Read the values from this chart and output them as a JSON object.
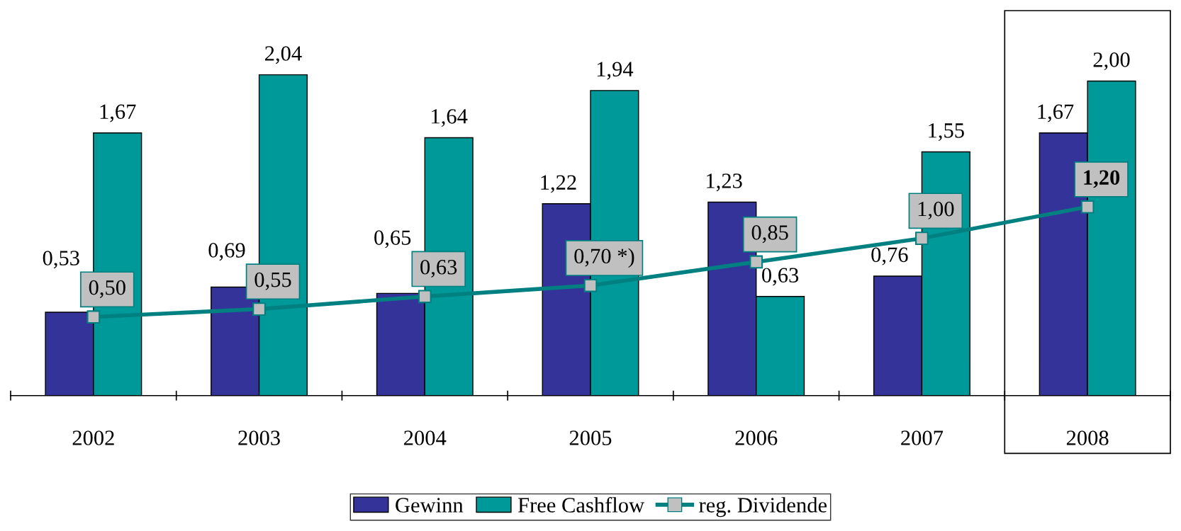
{
  "chart_data": {
    "type": "bar",
    "categories": [
      "2002",
      "2003",
      "2004",
      "2005",
      "2006",
      "2007",
      "2008"
    ],
    "series": [
      {
        "name": "Gewinn",
        "color": "#333399",
        "values": [
          0.53,
          0.69,
          0.65,
          1.22,
          1.23,
          0.76,
          1.67
        ],
        "value_labels": [
          "0,53",
          "0,69",
          "0,65",
          "1,22",
          "1,23",
          "0,76",
          "1,67"
        ]
      },
      {
        "name": "Free Cashflow",
        "color": "#009999",
        "values": [
          1.67,
          2.04,
          1.64,
          1.94,
          0.63,
          1.55,
          2.0
        ],
        "value_labels": [
          "1,67",
          "2,04",
          "1,64",
          "1,94",
          "0,63",
          "1,55",
          "2,00"
        ]
      },
      {
        "name": "reg. Dividende",
        "type": "line",
        "color": "#008080",
        "marker": "square",
        "values": [
          0.5,
          0.55,
          0.63,
          0.7,
          0.85,
          1.0,
          1.2
        ],
        "value_labels": [
          "0,50",
          "0,55",
          "0,63",
          "0,70 *)",
          "0,85",
          "1,00",
          "1,20"
        ]
      }
    ],
    "bands": [
      {
        "axis": "x",
        "from": "2008",
        "to": "2008"
      }
    ],
    "legend": "bottom",
    "grid": false
  }
}
